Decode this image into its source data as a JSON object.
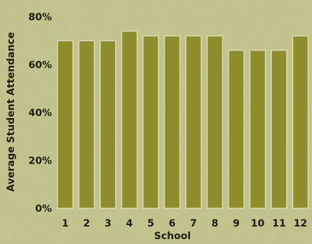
{
  "chart_data": {
    "type": "bar",
    "categories": [
      "1",
      "2",
      "3",
      "4",
      "5",
      "6",
      "7",
      "8",
      "9",
      "10",
      "11",
      "12"
    ],
    "values": [
      70,
      70,
      70,
      74,
      72,
      72,
      72,
      72,
      66,
      66,
      66,
      72
    ],
    "ylabel": "Average Student Attendance",
    "xlabel": "School",
    "ylim": [
      0,
      80
    ],
    "yticks": [
      "0%",
      "20%",
      "40%",
      "60%",
      "80%"
    ],
    "ytick_values": [
      0,
      20,
      40,
      60,
      80
    ],
    "grid": false,
    "colors": {
      "background": "#c3c38a",
      "bar": "#8d8d2c",
      "bar_border": "#dcdcb0",
      "text": "#1e1e10"
    }
  }
}
